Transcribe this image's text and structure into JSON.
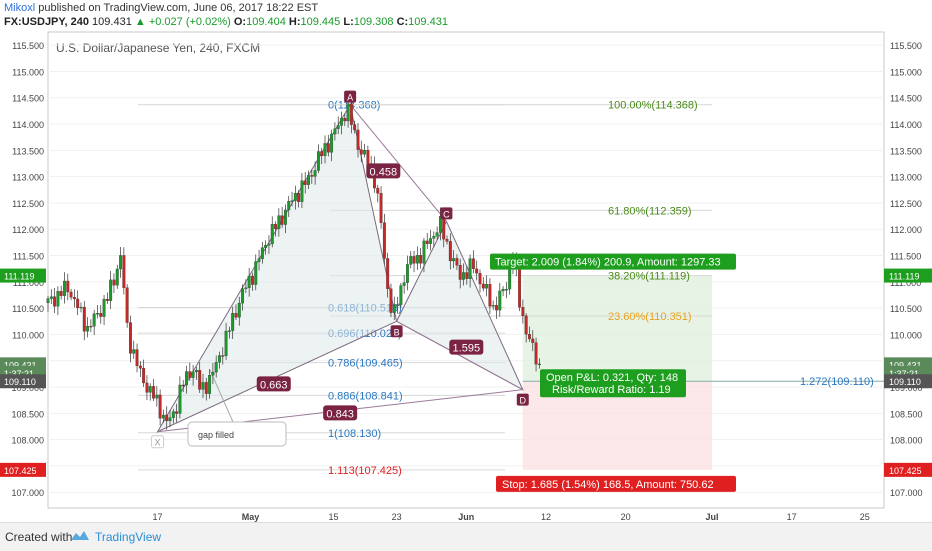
{
  "header": {
    "author": "Mikoxl",
    "published": "published on TradingView.com, June 06, 2017 18:22 EST",
    "symbol": "FX:USDJPY, 240",
    "last": "109.431",
    "change": "+0.027 (+0.02%)",
    "o_label": "O:",
    "o": "109.404",
    "h_label": "H:",
    "h": "109.445",
    "l_label": "L:",
    "l": "109.308",
    "c_label": "C:",
    "c": "109.431"
  },
  "chart_title": "U.S. Dollar/Japanese Yen, 240, FXCM",
  "footer": {
    "created_with": "Created with",
    "brand": "TradingView"
  },
  "colors": {
    "up": "#1a9a2a",
    "down": "#c62828",
    "pattern_fill": "#dfe7ea",
    "pattern_label": "#7b2343",
    "target_green": "#1e9e1e",
    "stop_red": "#e02020",
    "fib_blue": "#2a78c2",
    "fib_orange": "#e8a020",
    "fib_green": "#4a8a1a"
  },
  "chart_data": {
    "type": "candlestick",
    "y_ticks": [
      "115.500",
      "115.000",
      "114.500",
      "114.000",
      "113.500",
      "113.000",
      "112.500",
      "112.000",
      "111.500",
      "111.000",
      "110.500",
      "110.000",
      "109.500",
      "109.000",
      "108.500",
      "108.000",
      "107.500",
      "107.000"
    ],
    "y_tick_values": [
      115.5,
      115.0,
      114.5,
      114.0,
      113.5,
      113.0,
      112.5,
      112.0,
      111.5,
      111.0,
      110.5,
      110.0,
      109.5,
      109.0,
      108.5,
      108.0,
      107.5,
      107.0
    ],
    "ylim": [
      106.7,
      115.75
    ],
    "x_ticks": [
      "17",
      "May",
      "15",
      "23",
      "Jun",
      "12",
      "20",
      "Jul",
      "17",
      "25"
    ],
    "x_tick_pos": [
      0.165,
      0.305,
      0.43,
      0.525,
      0.63,
      0.75,
      0.87,
      1.0,
      1.12,
      1.23
    ],
    "price_series": [
      [
        0.0,
        110.6
      ],
      [
        0.03,
        110.9
      ],
      [
        0.06,
        110.1
      ],
      [
        0.09,
        110.7
      ],
      [
        0.11,
        111.5
      ],
      [
        0.12,
        110.0
      ],
      [
        0.14,
        109.2
      ],
      [
        0.16,
        108.8
      ],
      [
        0.18,
        108.3
      ],
      [
        0.19,
        108.5
      ],
      [
        0.2,
        109.0
      ],
      [
        0.22,
        109.4
      ],
      [
        0.23,
        108.9
      ],
      [
        0.25,
        109.3
      ],
      [
        0.27,
        110.0
      ],
      [
        0.29,
        110.7
      ],
      [
        0.31,
        111.2
      ],
      [
        0.33,
        111.8
      ],
      [
        0.35,
        112.2
      ],
      [
        0.37,
        112.6
      ],
      [
        0.39,
        112.9
      ],
      [
        0.41,
        113.4
      ],
      [
        0.43,
        113.8
      ],
      [
        0.45,
        114.3
      ],
      [
        0.46,
        113.9
      ],
      [
        0.47,
        113.5
      ],
      [
        0.49,
        113.1
      ],
      [
        0.5,
        112.3
      ],
      [
        0.51,
        111.0
      ],
      [
        0.52,
        110.3
      ],
      [
        0.53,
        110.8
      ],
      [
        0.54,
        111.3
      ],
      [
        0.56,
        111.5
      ],
      [
        0.58,
        111.9
      ],
      [
        0.59,
        112.1
      ],
      [
        0.61,
        111.4
      ],
      [
        0.62,
        111.1
      ],
      [
        0.64,
        111.3
      ],
      [
        0.66,
        110.8
      ],
      [
        0.67,
        110.5
      ],
      [
        0.69,
        110.9
      ],
      [
        0.7,
        111.6
      ],
      [
        0.71,
        110.6
      ],
      [
        0.72,
        110.1
      ],
      [
        0.73,
        109.7
      ],
      [
        0.74,
        109.4
      ]
    ],
    "pattern_points": [
      {
        "label": "X",
        "x": 0.165,
        "y": 108.15
      },
      {
        "label": "A",
        "x": 0.455,
        "y": 114.37
      },
      {
        "label": "B",
        "x": 0.525,
        "y": 110.25
      },
      {
        "label": "C",
        "x": 0.6,
        "y": 112.15
      },
      {
        "label": "D",
        "x": 0.715,
        "y": 108.95
      }
    ],
    "pattern_ratios": [
      {
        "label": "0.663",
        "x": 0.34,
        "y": 109.05
      },
      {
        "label": "0.458",
        "x": 0.505,
        "y": 113.1
      },
      {
        "label": "1.595",
        "x": 0.63,
        "y": 109.75
      },
      {
        "label": "0.843",
        "x": 0.44,
        "y": 108.5
      }
    ],
    "fib_left": [
      {
        "label": "0(114.368)",
        "value": 114.368
      },
      {
        "label": "0.618(110.513)",
        "value": 110.513
      },
      {
        "label": "0.696(110.026)",
        "value": 110.026
      },
      {
        "label": "0.786(109.465)",
        "value": 109.465
      },
      {
        "label": "0.886(108.841)",
        "value": 108.841
      },
      {
        "label": "1(108.130)",
        "value": 108.13
      },
      {
        "label": "1.113(107.425)",
        "value": 107.425
      }
    ],
    "fib_right": [
      {
        "label": "100.00%(114.368)",
        "value": 114.368,
        "color": "#4a8a1a"
      },
      {
        "label": "61.80%(112.359)",
        "value": 112.359,
        "color": "#4a8a1a"
      },
      {
        "label": "38.20%(111.119)",
        "value": 111.119,
        "color": "#4a8a1a"
      },
      {
        "label": "23.60%(110.351)",
        "value": 110.351,
        "color": "#e8a020"
      }
    ],
    "fib_ext": {
      "label": "1.272(109.110)",
      "value": 109.11
    },
    "position": {
      "entry": 109.11,
      "target": 111.119,
      "stop": 107.425,
      "target_label": "Target: 2.009 (1.84%) 200.9, Amount: 1297.33",
      "stop_label": "Stop: 1.685 (1.54%) 168.5, Amount: 750.62",
      "pnl_label": "Open P&L: 0.321, Qty: 148",
      "rr_label": "Risk/Reward Ratio: 1.19"
    },
    "gap_note": "gap filled",
    "price_tags_right": [
      {
        "label": "111.119",
        "value": 111.119,
        "color": "#1e9e1e"
      },
      {
        "label": "109.431",
        "value": 109.431,
        "color": "#5a8a5a"
      },
      {
        "label": "1:37:21",
        "value": 109.27,
        "color": "#5a8a5a"
      },
      {
        "label": "109.110",
        "value": 109.11,
        "color": "#555555"
      },
      {
        "label": "107.425",
        "value": 107.425,
        "color": "#e02020"
      }
    ],
    "price_tags_left": [
      {
        "label": "111.119",
        "value": 111.119,
        "color": "#1e9e1e"
      },
      {
        "label": "109.431",
        "value": 109.431,
        "color": "#5a8a5a"
      },
      {
        "label": "1:37:21",
        "value": 109.27,
        "color": "#5a8a5a"
      },
      {
        "label": "109.110",
        "value": 109.11,
        "color": "#555555"
      },
      {
        "label": "107.425",
        "value": 107.425,
        "color": "#e02020"
      }
    ]
  }
}
